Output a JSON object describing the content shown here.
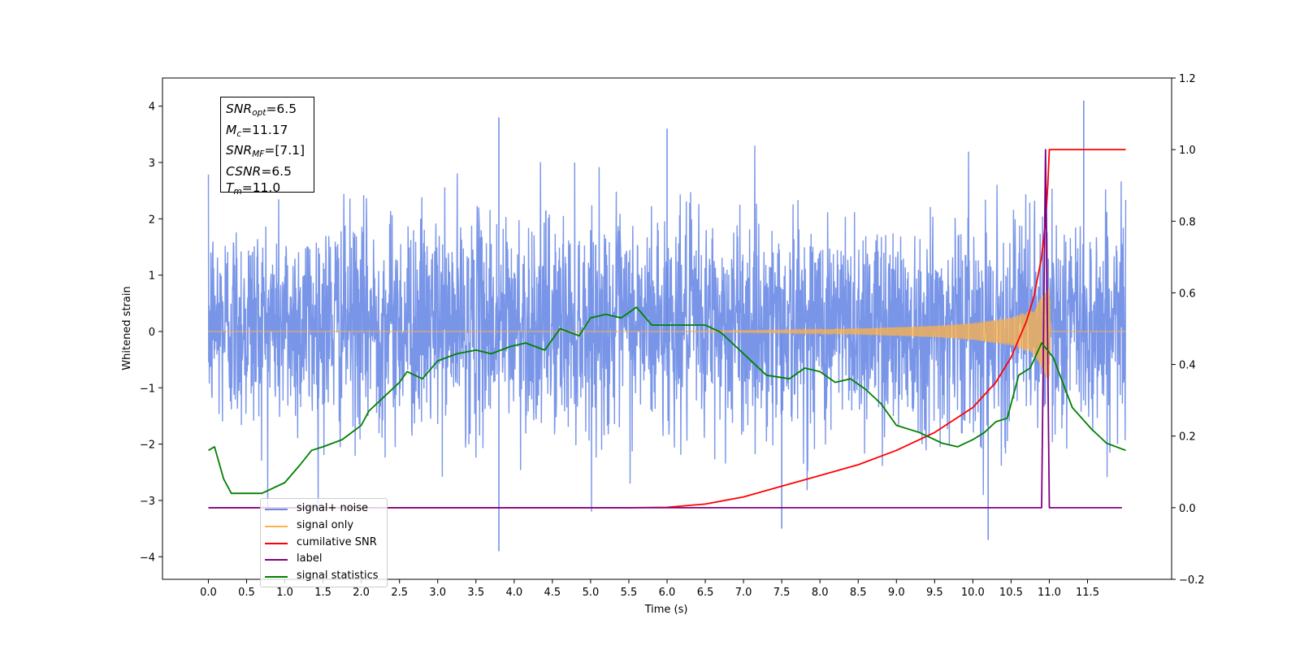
{
  "chart_data": {
    "type": "line",
    "x_label": "Time (s)",
    "y_label_left": "Whitened strain",
    "xlim": [
      -0.6,
      12.6
    ],
    "ylim_left": [
      -4.4,
      4.5
    ],
    "ylim_right": [
      -0.2,
      1.2
    ],
    "x_ticks": [
      "0.0",
      "0.5",
      "1.0",
      "1.5",
      "2.0",
      "2.5",
      "3.0",
      "3.5",
      "4.0",
      "4.5",
      "5.0",
      "5.5",
      "6.0",
      "6.5",
      "7.0",
      "7.5",
      "8.0",
      "8.5",
      "9.0",
      "9.5",
      "10.0",
      "10.5",
      "11.0",
      "11.5"
    ],
    "y_ticks_left": [
      "4",
      "3",
      "2",
      "1",
      "0",
      "−1",
      "−2",
      "−3",
      "−4"
    ],
    "y_ticks_right": [
      "1.2",
      "1.0",
      "0.8",
      "0.6",
      "0.4",
      "0.2",
      "0.0",
      "−0.2"
    ],
    "stats_box": {
      "snr_opt": "=6.5",
      "mc": "=11.17",
      "snr_mf": "=[7.1]",
      "csnr": "=6.5",
      "tm": "=11.0"
    },
    "legend": [
      {
        "label": "signal+ noise",
        "color": "#6a8ae6"
      },
      {
        "label": "signal only",
        "color": "#ffb347"
      },
      {
        "label": "cumilative SNR",
        "color": "#ff0000"
      },
      {
        "label": "label",
        "color": "#800080"
      },
      {
        "label": "signal statistics",
        "color": "#008000"
      }
    ],
    "series": [
      {
        "name": "signal+ noise",
        "axis": "left",
        "color": "#6a8ae6",
        "x_range": [
          0.0,
          12.0
        ],
        "envelope_typical": [
          -1.8,
          2.2
        ],
        "notable_peaks": [
          [
            3.8,
            3.8
          ],
          [
            6.0,
            3.6
          ],
          [
            11.45,
            4.1
          ],
          [
            3.8,
            -3.9
          ],
          [
            10.2,
            -3.7
          ],
          [
            7.5,
            -3.5
          ]
        ]
      },
      {
        "name": "signal only",
        "axis": "left",
        "color": "#ffb347",
        "envelope": [
          [
            0.0,
            0.0
          ],
          [
            6.0,
            0.0
          ],
          [
            7.5,
            0.02
          ],
          [
            8.5,
            0.05
          ],
          [
            9.5,
            0.1
          ],
          [
            10.0,
            0.15
          ],
          [
            10.5,
            0.25
          ],
          [
            10.8,
            0.4
          ],
          [
            11.0,
            0.9
          ],
          [
            11.02,
            0.0
          ],
          [
            12.0,
            0.0
          ]
        ]
      },
      {
        "name": "cumilative SNR",
        "axis": "right",
        "color": "#ff0000",
        "points": [
          [
            0.0,
            0.0
          ],
          [
            5.5,
            0.0
          ],
          [
            6.0,
            0.001
          ],
          [
            6.5,
            0.01
          ],
          [
            7.0,
            0.03
          ],
          [
            7.5,
            0.06
          ],
          [
            8.0,
            0.09
          ],
          [
            8.5,
            0.12
          ],
          [
            9.0,
            0.16
          ],
          [
            9.5,
            0.21
          ],
          [
            10.0,
            0.28
          ],
          [
            10.3,
            0.35
          ],
          [
            10.5,
            0.42
          ],
          [
            10.7,
            0.52
          ],
          [
            10.8,
            0.59
          ],
          [
            10.9,
            0.7
          ],
          [
            10.95,
            0.8
          ],
          [
            10.98,
            0.9
          ],
          [
            11.0,
            1.0
          ],
          [
            12.0,
            1.0
          ]
        ]
      },
      {
        "name": "label",
        "axis": "right",
        "color": "#800080",
        "points": [
          [
            0.0,
            0.0
          ],
          [
            10.9,
            0.0
          ],
          [
            10.95,
            1.0
          ],
          [
            11.0,
            0.0
          ],
          [
            11.95,
            0.0
          ]
        ]
      },
      {
        "name": "signal statistics",
        "axis": "right",
        "color": "#008000",
        "points": [
          [
            0.0,
            0.16
          ],
          [
            0.08,
            0.17
          ],
          [
            0.2,
            0.08
          ],
          [
            0.3,
            0.04
          ],
          [
            0.45,
            0.04
          ],
          [
            0.7,
            0.04
          ],
          [
            1.0,
            0.07
          ],
          [
            1.2,
            0.12
          ],
          [
            1.35,
            0.16
          ],
          [
            1.5,
            0.17
          ],
          [
            1.75,
            0.19
          ],
          [
            2.0,
            0.23
          ],
          [
            2.1,
            0.27
          ],
          [
            2.3,
            0.31
          ],
          [
            2.5,
            0.35
          ],
          [
            2.6,
            0.38
          ],
          [
            2.8,
            0.36
          ],
          [
            3.0,
            0.41
          ],
          [
            3.25,
            0.43
          ],
          [
            3.5,
            0.44
          ],
          [
            3.7,
            0.43
          ],
          [
            3.95,
            0.45
          ],
          [
            4.15,
            0.46
          ],
          [
            4.4,
            0.44
          ],
          [
            4.6,
            0.5
          ],
          [
            4.85,
            0.48
          ],
          [
            5.0,
            0.53
          ],
          [
            5.2,
            0.54
          ],
          [
            5.4,
            0.53
          ],
          [
            5.6,
            0.56
          ],
          [
            5.8,
            0.51
          ],
          [
            6.0,
            0.51
          ],
          [
            6.2,
            0.51
          ],
          [
            6.5,
            0.51
          ],
          [
            6.7,
            0.49
          ],
          [
            6.9,
            0.45
          ],
          [
            7.1,
            0.41
          ],
          [
            7.3,
            0.37
          ],
          [
            7.6,
            0.36
          ],
          [
            7.8,
            0.39
          ],
          [
            8.0,
            0.38
          ],
          [
            8.2,
            0.35
          ],
          [
            8.4,
            0.36
          ],
          [
            8.6,
            0.33
          ],
          [
            8.8,
            0.29
          ],
          [
            9.0,
            0.23
          ],
          [
            9.3,
            0.21
          ],
          [
            9.6,
            0.18
          ],
          [
            9.8,
            0.17
          ],
          [
            10.0,
            0.19
          ],
          [
            10.15,
            0.21
          ],
          [
            10.3,
            0.24
          ],
          [
            10.45,
            0.25
          ],
          [
            10.6,
            0.37
          ],
          [
            10.75,
            0.39
          ],
          [
            10.9,
            0.46
          ],
          [
            11.05,
            0.42
          ],
          [
            11.3,
            0.28
          ],
          [
            11.55,
            0.22
          ],
          [
            11.75,
            0.18
          ],
          [
            12.0,
            0.16
          ]
        ]
      }
    ]
  }
}
